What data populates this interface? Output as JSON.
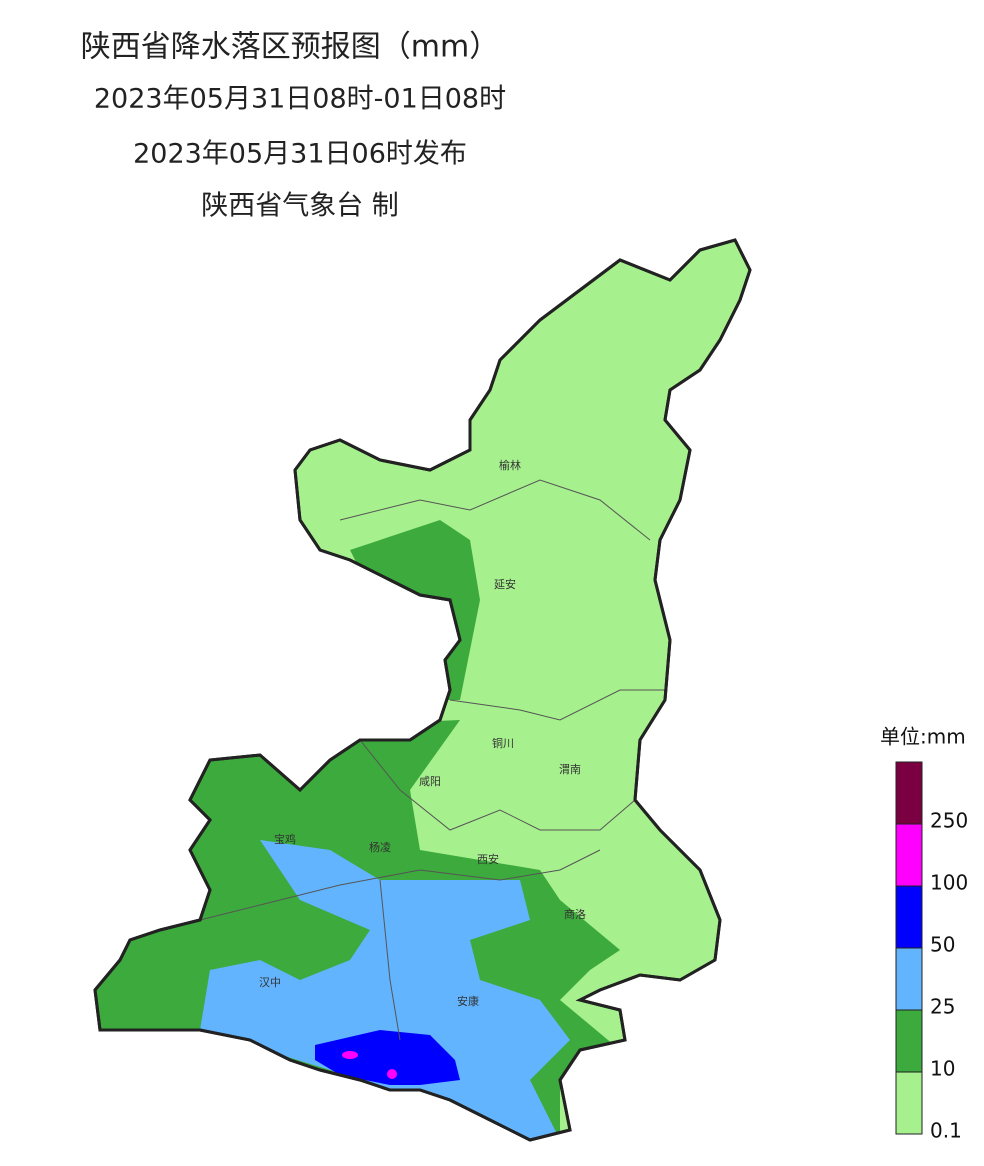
{
  "header": {
    "title": "陕西省降水落区预报图（mm）",
    "period": "2023年05月31日08时-01日08时",
    "issued": "2023年05月31日06时发布",
    "issuer": "陕西省气象台 制"
  },
  "map": {
    "cities": [
      "榆林",
      "延安",
      "铜川",
      "渭南",
      "咸阳",
      "宝鸡",
      "杨凌",
      "西安",
      "商洛",
      "汉中",
      "安康"
    ]
  },
  "legend": {
    "unit": "单位:mm",
    "colors": [
      "#7b0041",
      "#ff00ff",
      "#0000ff",
      "#62b4ff",
      "#3caa3c",
      "#a6f08e"
    ],
    "labels": [
      "250",
      "100",
      "50",
      "25",
      "10",
      "0.1"
    ]
  }
}
